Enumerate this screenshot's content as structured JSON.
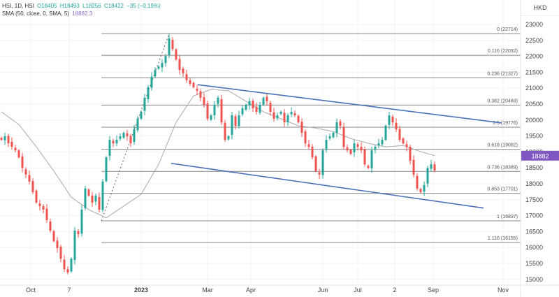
{
  "header": {
    "symbol_line": "HSI, 1D, HSI",
    "open": "O18405",
    "high": "H18493",
    "low": "L18256",
    "close": "C18422",
    "change": "−35 (−0.19%)",
    "sma_label": "SMA (50, close, 0, SMA, 5)",
    "sma_value": "18882.3"
  },
  "currency": "HKD",
  "price_tag": "18882",
  "colors": {
    "up": "#26a69a",
    "down": "#ef5350",
    "trend": "#4a72b8",
    "sma": "#aaaaaa",
    "fib": "#888888",
    "tag": "#7e57c2"
  },
  "chart_data": {
    "type": "candlestick",
    "title": "HSI, 1D",
    "ylabel": "HKD",
    "ylim": [
      14800,
      23300
    ],
    "y_ticks": [
      "15000",
      "15500",
      "16000",
      "16500",
      "17000",
      "17500",
      "18000",
      "18500",
      "19000",
      "19500",
      "20000",
      "20500",
      "21000",
      "21500",
      "22000",
      "22500",
      "23000"
    ],
    "x_ticks": [
      {
        "label": "Oct",
        "index": 8.4
      },
      {
        "label": "7",
        "index": 19.4
      },
      {
        "label": "2023",
        "index": 40
      },
      {
        "label": "Mar",
        "index": 59
      },
      {
        "label": "Apr",
        "index": 71.4
      },
      {
        "label": "Jun",
        "index": 92
      },
      {
        "label": "Jul",
        "index": 102
      },
      {
        "label": "2",
        "index": 112.6
      },
      {
        "label": "Sep",
        "index": 123.6
      },
      {
        "label": "Nov",
        "index": 143.6
      }
    ],
    "closes": [
      19380,
      19490,
      19270,
      19160,
      19050,
      18830,
      18500,
      18290,
      18070,
      17740,
      17410,
      17300,
      17190,
      16860,
      16530,
      16200,
      15980,
      15650,
      15320,
      15220,
      15650,
      16530,
      16420,
      17190,
      17850,
      17630,
      17410,
      17630,
      17190,
      18070,
      18830,
      19380,
      19270,
      19380,
      19490,
      19600,
      19490,
      19270,
      19710,
      20040,
      20260,
      20700,
      21030,
      21360,
      21570,
      21680,
      21790,
      22010,
      22560,
      22230,
      21900,
      21570,
      21470,
      21250,
      21140,
      21030,
      20920,
      20700,
      20480,
      20040,
      20150,
      20480,
      20700,
      19930,
      19380,
      19490,
      20150,
      19820,
      20150,
      20370,
      20480,
      20590,
      20370,
      20260,
      20480,
      20700,
      20590,
      20260,
      20040,
      20150,
      20260,
      19930,
      20150,
      20260,
      20150,
      19930,
      19600,
      19270,
      19160,
      18830,
      18400,
      18290,
      19050,
      19380,
      19490,
      19600,
      19930,
      19820,
      19160,
      19050,
      18940,
      19270,
      19160,
      19050,
      18610,
      18500,
      19050,
      19160,
      19270,
      19380,
      19820,
      20150,
      19930,
      19710,
      19380,
      19270,
      19160,
      18720,
      18290,
      17850,
      17740,
      17960,
      18500,
      18610,
      18422
    ],
    "sma": {
      "name": "SMA 50",
      "step": 5,
      "values": [
        20260,
        19860,
        19160,
        18400,
        17580,
        17190,
        16930,
        17300,
        17670,
        18610,
        19930,
        20760,
        20960,
        20920,
        20590,
        20260,
        20040,
        19820,
        19750,
        19640,
        19420,
        19270,
        19160,
        19200,
        19010,
        18882
      ]
    },
    "fibonacci": {
      "start_index": 28.6,
      "levels": [
        {
          "label": "0 (22714)",
          "price": 22714
        },
        {
          "label": "0.116 (22032)",
          "price": 22032
        },
        {
          "label": "0.236 (21327)",
          "price": 21327
        },
        {
          "label": "0.382 (20469)",
          "price": 20469
        },
        {
          "label": "0.5 (19776)",
          "price": 19776
        },
        {
          "label": "0.618 (19082)",
          "price": 19082
        },
        {
          "label": "0.736 (18389)",
          "price": 18389
        },
        {
          "label": "0.853 (17701)",
          "price": 17701
        },
        {
          "label": "1 (16837)",
          "price": 16837
        },
        {
          "label": "1.116 (16155)",
          "price": 16155
        }
      ],
      "trend_line": [
        {
          "index": 28.6,
          "price": 16837
        },
        {
          "index": 48,
          "price": 22714
        }
      ]
    },
    "channel": {
      "upper": [
        {
          "index": 56.2,
          "price": 21110
        },
        {
          "index": 143.2,
          "price": 19910
        }
      ],
      "lower": [
        {
          "index": 48.6,
          "price": 18640
        },
        {
          "index": 138,
          "price": 17240
        }
      ]
    },
    "last_price": 18882
  }
}
